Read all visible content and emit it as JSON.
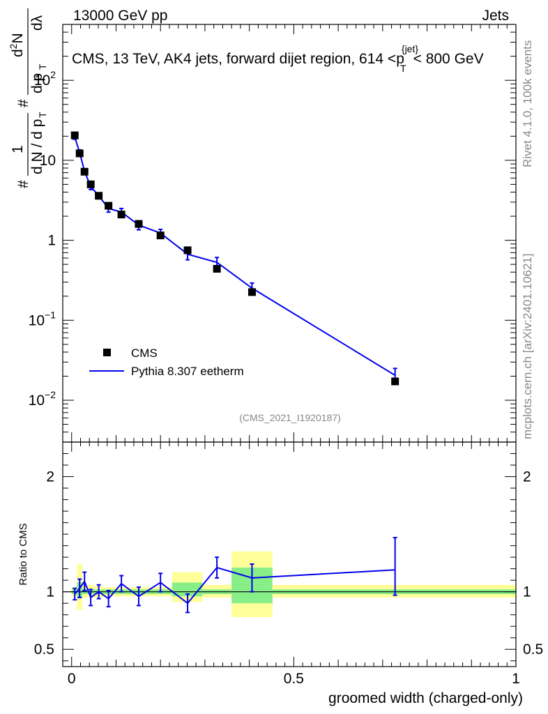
{
  "header": {
    "energy_label": "13000 GeV pp",
    "category_label": "Jets"
  },
  "side_text": {
    "rivet": "Rivet 4.1.0,  100k events",
    "source": "mcplots.cern.ch [arXiv:2401.10621]"
  },
  "watermark": "(CMS_2021_I1920187)",
  "chart_data": [
    {
      "type": "scatter",
      "title_main": "CMS, 13 TeV, AK4 jets, forward dijet region, 614 <",
      "title_p": "p",
      "title_p_sub": "T",
      "title_p_sup": "{jet}",
      "title_end": "< 800 GeV",
      "ylabel_parts": {
        "hash1": "#",
        "one": "1",
        "dN": "d N / d p",
        "dN_sub": "T",
        "hash2": "#",
        "d2N": "d",
        "d2N_sup": "2",
        "d2N_end": "N",
        "dp": "d p",
        "dp_sub": "T",
        "dlambda": "dλ"
      },
      "yscale": "log",
      "ylim": [
        0.003,
        500
      ],
      "xlim": [
        -0.02,
        1.0
      ],
      "y_tick_labels": [
        {
          "base": "10",
          "exp": "−2",
          "value": 0.01
        },
        {
          "base": "10",
          "exp": "−1",
          "value": 0.1
        },
        {
          "base": "1",
          "exp": "",
          "value": 1
        },
        {
          "base": "10",
          "exp": "",
          "value": 10
        },
        {
          "base": "10",
          "exp": "2",
          "value": 100
        }
      ],
      "legend": {
        "position": "lower-left",
        "entries": [
          "CMS",
          "Pythia 8.307 eetherm"
        ]
      },
      "series": [
        {
          "name": "CMS",
          "style": "markers",
          "x": [
            0.007,
            0.018,
            0.029,
            0.043,
            0.061,
            0.083,
            0.112,
            0.151,
            0.2,
            0.261,
            0.327,
            0.406,
            0.728
          ],
          "y": [
            20.5,
            12.2,
            7.2,
            5.0,
            3.6,
            2.7,
            2.1,
            1.6,
            1.15,
            0.75,
            0.44,
            0.225,
            0.0172
          ]
        },
        {
          "name": "Pythia 8.307 eetherm",
          "style": "line",
          "x": [
            0.007,
            0.018,
            0.029,
            0.043,
            0.061,
            0.083,
            0.112,
            0.151,
            0.2,
            0.261,
            0.327,
            0.406,
            0.728
          ],
          "y": [
            19.5,
            12.5,
            7.3,
            4.7,
            3.6,
            2.5,
            2.25,
            1.55,
            1.23,
            0.67,
            0.53,
            0.252,
            0.0205
          ],
          "err_low": [
            1.2,
            1.0,
            0.5,
            0.4,
            0.3,
            0.25,
            0.25,
            0.2,
            0.14,
            0.1,
            0.08,
            0.04,
            0.003
          ],
          "err_high": [
            1.2,
            1.0,
            0.5,
            0.4,
            0.3,
            0.25,
            0.25,
            0.2,
            0.14,
            0.1,
            0.08,
            0.04,
            0.0045
          ]
        }
      ]
    },
    {
      "type": "line",
      "ylabel": "Ratio to CMS",
      "xlabel": "groomed width (charged-only)",
      "ylim": [
        0.35,
        2.3
      ],
      "xlim": [
        -0.02,
        1.0
      ],
      "y_tick_labels": [
        "0.5",
        "1",
        "2"
      ],
      "y_tick_values": [
        0.5,
        1,
        2
      ],
      "x_tick_labels": [
        "0",
        "0.5",
        "1"
      ],
      "x_tick_values": [
        0,
        0.5,
        1
      ],
      "reference": 1,
      "bin_edges": [
        0.0,
        0.012,
        0.024,
        0.035,
        0.051,
        0.071,
        0.096,
        0.128,
        0.176,
        0.226,
        0.294,
        0.36,
        0.452,
        1.0
      ],
      "band_yellow": [
        [
          0.96,
          1.04
        ],
        [
          0.84,
          1.24
        ],
        [
          0.95,
          1.06
        ],
        [
          0.95,
          1.06
        ],
        [
          0.95,
          1.05
        ],
        [
          0.96,
          1.04
        ],
        [
          0.96,
          1.04
        ],
        [
          0.96,
          1.04
        ],
        [
          0.96,
          1.04
        ],
        [
          0.91,
          1.17
        ],
        [
          0.95,
          1.06
        ],
        [
          0.78,
          1.35
        ],
        [
          0.95,
          1.06
        ]
      ],
      "band_green": [
        [
          0.98,
          1.02
        ],
        [
          0.95,
          1.08
        ],
        [
          0.98,
          1.02
        ],
        [
          0.98,
          1.02
        ],
        [
          0.98,
          1.02
        ],
        [
          0.98,
          1.02
        ],
        [
          0.98,
          1.02
        ],
        [
          0.98,
          1.02
        ],
        [
          0.98,
          1.02
        ],
        [
          0.96,
          1.08
        ],
        [
          0.98,
          1.02
        ],
        [
          0.9,
          1.21
        ],
        [
          0.98,
          1.02
        ]
      ],
      "series": [
        {
          "name": "Pythia 8.307 eetherm / CMS",
          "x": [
            0.007,
            0.018,
            0.029,
            0.043,
            0.061,
            0.083,
            0.112,
            0.151,
            0.2,
            0.261,
            0.327,
            0.406,
            0.728
          ],
          "y": [
            0.98,
            1.03,
            1.09,
            0.95,
            1.0,
            0.94,
            1.07,
            0.96,
            1.08,
            0.9,
            1.21,
            1.12,
            1.19
          ],
          "err_low": [
            0.05,
            0.08,
            0.08,
            0.07,
            0.06,
            0.07,
            0.07,
            0.08,
            0.08,
            0.08,
            0.09,
            0.12,
            0.22
          ],
          "err_high": [
            0.05,
            0.08,
            0.08,
            0.07,
            0.06,
            0.07,
            0.07,
            0.08,
            0.08,
            0.08,
            0.09,
            0.12,
            0.28
          ]
        }
      ]
    }
  ],
  "colors": {
    "mc": "#0000ee",
    "data": "#000000",
    "band_yellow": "#ffff99",
    "band_green": "#88ee88"
  }
}
